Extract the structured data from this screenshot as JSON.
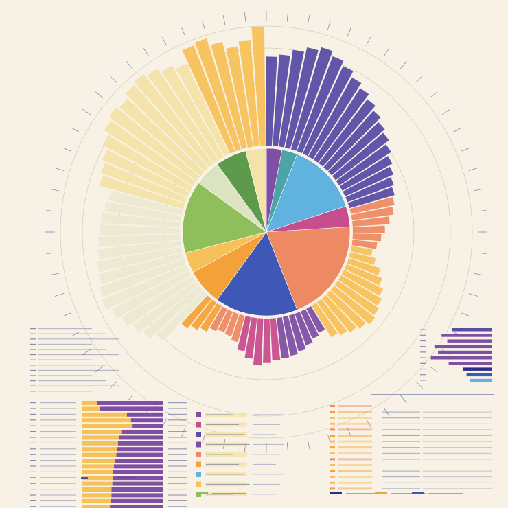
{
  "palette": {
    "background": "#f8f2e6",
    "purple": "#7e4fa5",
    "violet": "#5a4da6",
    "navy": "#2b2f8a",
    "blue": "#3f57b6",
    "sky": "#5fb3de",
    "teal": "#4aa4a8",
    "magenta": "#c74d8f",
    "salmon": "#ee8a63",
    "orange": "#f3a23a",
    "amber": "#f7c15a",
    "cream": "#f3e3a8",
    "sage": "#dbe3c0",
    "pale": "#ece9d2",
    "green": "#8fbf5a",
    "darkgreen": "#5e9a4c",
    "ink": "#3a4a8a",
    "rule": "#d9cdb4"
  },
  "chart_data": [
    {
      "type": "pie",
      "part": "inner-donut",
      "slices": [
        {
          "value": 3,
          "color_key": "purple"
        },
        {
          "value": 3,
          "color_key": "teal"
        },
        {
          "value": 14,
          "color_key": "sky"
        },
        {
          "value": 4,
          "color_key": "magenta"
        },
        {
          "value": 20,
          "color_key": "salmon"
        },
        {
          "value": 16,
          "color_key": "blue"
        },
        {
          "value": 7,
          "color_key": "orange"
        },
        {
          "value": 4,
          "color_key": "amber"
        },
        {
          "value": 14,
          "color_key": "green"
        },
        {
          "value": 5,
          "color_key": "sage"
        },
        {
          "value": 6,
          "color_key": "darkgreen"
        },
        {
          "value": 4,
          "color_key": "cream"
        }
      ]
    },
    {
      "type": "bar",
      "part": "radial-bars",
      "sectors": [
        {
          "color_key": "violet",
          "values": [
            72,
            74,
            79,
            83,
            86,
            82,
            78,
            73,
            69,
            65,
            61,
            57,
            54,
            50,
            46,
            43,
            40,
            38
          ]
        },
        {
          "color_key": "salmon",
          "values": [
            36,
            34,
            30,
            26,
            23,
            20
          ]
        },
        {
          "color_key": "amber",
          "values": [
            17,
            21,
            27,
            31,
            35,
            38,
            40,
            42,
            39,
            36,
            33,
            30
          ]
        },
        {
          "color_key": "purple",
          "values": [
            22,
            24,
            27,
            30,
            32,
            33
          ]
        },
        {
          "color_key": "magenta",
          "values": [
            34,
            36,
            38,
            33,
            28
          ]
        },
        {
          "color_key": "salmon",
          "values": [
            22,
            19,
            18,
            20
          ]
        },
        {
          "color_key": "orange",
          "values": [
            24,
            27,
            31
          ]
        },
        {
          "color_key": "pale",
          "values": [
            52,
            58,
            62,
            66,
            70,
            74,
            72,
            70,
            69,
            67,
            66,
            65,
            64,
            62,
            60
          ]
        },
        {
          "color_key": "cream",
          "values": [
            70,
            72,
            75,
            80,
            85,
            88,
            86,
            90,
            92,
            89,
            85,
            81
          ]
        },
        {
          "color_key": "amber",
          "values": [
            92,
            94,
            88,
            82,
            86,
            96
          ]
        }
      ]
    },
    {
      "type": "bar",
      "part": "left-bar-panel",
      "rows": [
        {
          "a": 0.18,
          "b": 0.82
        },
        {
          "a": 0.22,
          "b": 0.78
        },
        {
          "a": 0.55,
          "b": 0.45
        },
        {
          "a": 0.6,
          "b": 0.4
        },
        {
          "a": 0.62,
          "b": 0.38
        },
        {
          "a": 0.48,
          "b": 0.52
        },
        {
          "a": 0.45,
          "b": 0.55
        },
        {
          "a": 0.44,
          "b": 0.56
        },
        {
          "a": 0.43,
          "b": 0.57
        },
        {
          "a": 0.42,
          "b": 0.58
        },
        {
          "a": 0.4,
          "b": 0.6
        },
        {
          "a": 0.39,
          "b": 0.61
        },
        {
          "a": 0.38,
          "b": 0.62
        },
        {
          "a": 0.38,
          "b": 0.62
        },
        {
          "a": 0.37,
          "b": 0.63
        },
        {
          "a": 0.36,
          "b": 0.64
        },
        {
          "a": 0.36,
          "b": 0.64
        },
        {
          "a": 0.35,
          "b": 0.65
        },
        {
          "a": 0.34,
          "b": 0.66
        },
        {
          "a": 0.34,
          "b": 0.66
        }
      ]
    },
    {
      "type": "bar",
      "part": "right-bar-panel",
      "rows": [
        {
          "value": 0.55,
          "color_key": "violet"
        },
        {
          "value": 0.7,
          "color_key": "purple"
        },
        {
          "value": 0.62,
          "color_key": "purple"
        },
        {
          "value": 0.8,
          "color_key": "purple"
        },
        {
          "value": 0.75,
          "color_key": "purple"
        },
        {
          "value": 0.85,
          "color_key": "purple"
        },
        {
          "value": 0.6,
          "color_key": "purple"
        },
        {
          "value": 0.4,
          "color_key": "navy"
        },
        {
          "value": 0.35,
          "color_key": "blue"
        },
        {
          "value": 0.3,
          "color_key": "sky"
        }
      ]
    },
    {
      "type": "table",
      "part": "center-legend",
      "rows": [
        {
          "color_key": "purple"
        },
        {
          "color_key": "magenta"
        },
        {
          "color_key": "violet"
        },
        {
          "color_key": "purple"
        },
        {
          "color_key": "salmon"
        },
        {
          "color_key": "orange"
        },
        {
          "color_key": "sky"
        },
        {
          "color_key": "amber"
        },
        {
          "color_key": "green"
        }
      ]
    },
    {
      "type": "table",
      "part": "right-table",
      "rows": [
        {
          "color_key": "salmon"
        },
        {
          "color_key": "orange"
        },
        {
          "color_key": "amber"
        },
        {
          "color_key": "amber"
        },
        {
          "color_key": "salmon"
        },
        {
          "color_key": "orange"
        },
        {
          "color_key": "amber"
        },
        {
          "color_key": "orange"
        },
        {
          "color_key": "amber"
        },
        {
          "color_key": "salmon"
        },
        {
          "color_key": "amber"
        },
        {
          "color_key": "orange"
        },
        {
          "color_key": "amber"
        },
        {
          "color_key": "amber"
        },
        {
          "color_key": "orange"
        }
      ]
    },
    {
      "type": "table",
      "part": "footer-legend",
      "items": [
        {
          "color_key": "green"
        },
        {
          "color_key": "navy"
        },
        {
          "color_key": "orange"
        },
        {
          "color_key": "blue"
        }
      ]
    }
  ]
}
